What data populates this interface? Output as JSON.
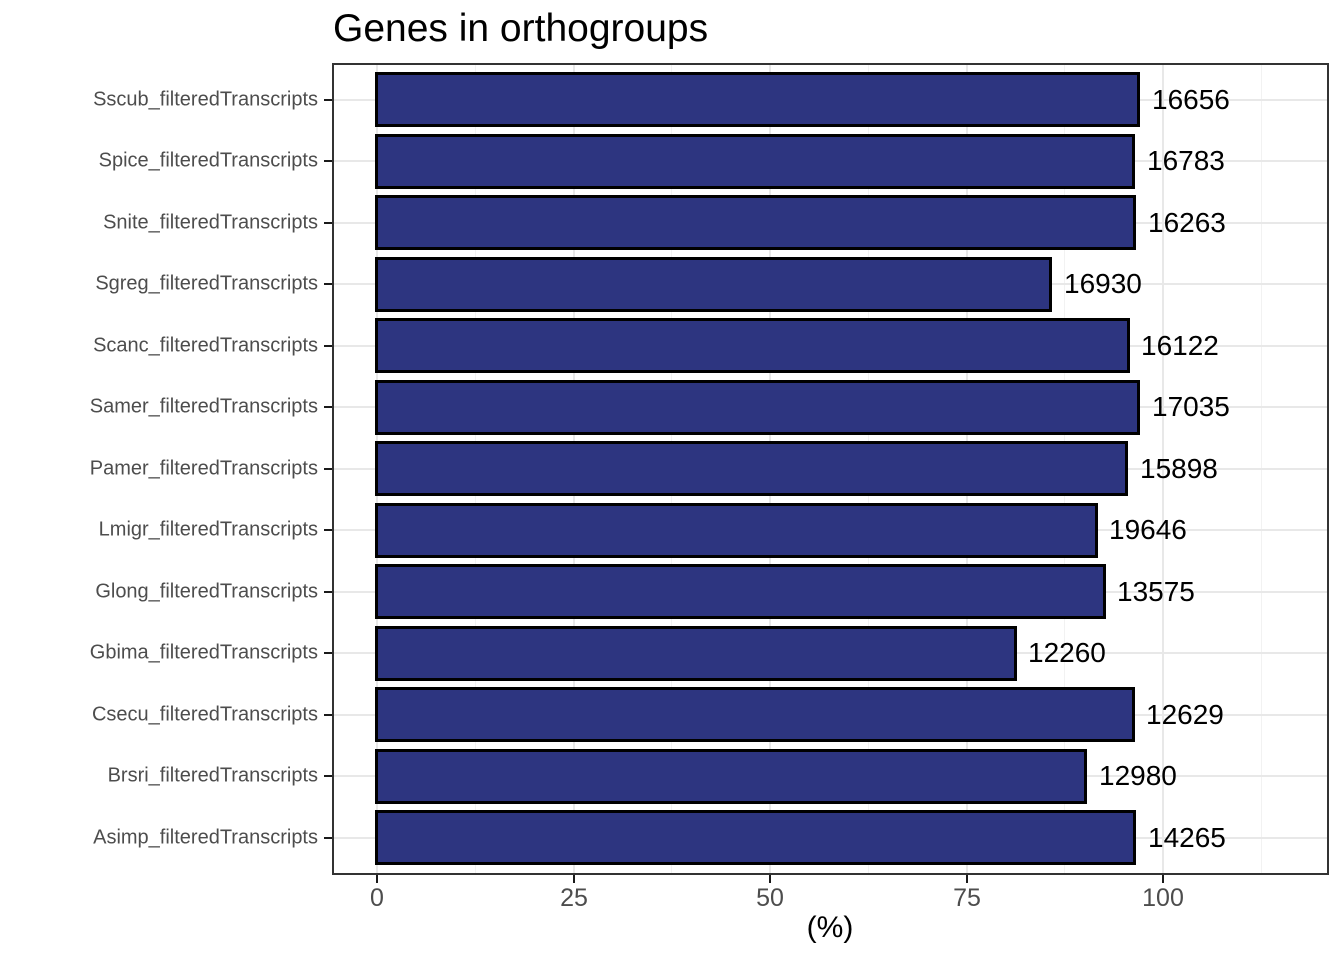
{
  "chart": {
    "title": "Genes in orthogroups",
    "xlabel": "(%)"
  },
  "chart_data": {
    "type": "bar",
    "orientation": "horizontal",
    "title": "Genes in orthogroups",
    "xlabel": "(%)",
    "ylabel": "",
    "categories": [
      "Sscub_filteredTranscripts",
      "Spice_filteredTranscripts",
      "Snite_filteredTranscripts",
      "Sgreg_filteredTranscripts",
      "Scanc_filteredTranscripts",
      "Samer_filteredTranscripts",
      "Pamer_filteredTranscripts",
      "Lmigr_filteredTranscripts",
      "Glong_filteredTranscripts",
      "Gbima_filteredTranscripts",
      "Csecu_filteredTranscripts",
      "Brsri_filteredTranscripts",
      "Asimp_filteredTranscripts"
    ],
    "bar_end_labels": [
      "16656",
      "16783",
      "16263",
      "16930",
      "16122",
      "17035",
      "15898",
      "19646",
      "13575",
      "12260",
      "12629",
      "12980",
      "14265"
    ],
    "percent_values": [
      96.9,
      96.3,
      96.4,
      85.7,
      95.6,
      96.9,
      95.4,
      91.5,
      92.5,
      81.2,
      96.2,
      90.2,
      96.4
    ],
    "xlim": [
      0,
      100
    ],
    "x_major_ticks": [
      "0",
      "25",
      "50",
      "75",
      "100"
    ],
    "x_major_tick_values": [
      0,
      25,
      50,
      75,
      100
    ],
    "x_minor_tick_values": [
      12.5,
      37.5,
      62.5,
      87.5,
      112.5
    ],
    "grid": true,
    "legend": false,
    "colors": {
      "bar_fill": "#2D3580",
      "bar_stroke": "#000000",
      "grid_major": "#E8E8E8",
      "grid_minor": "#F2F2F2",
      "panel_border": "#333333",
      "axis_text": "#4D4D4D",
      "title_text": "#000000"
    }
  }
}
